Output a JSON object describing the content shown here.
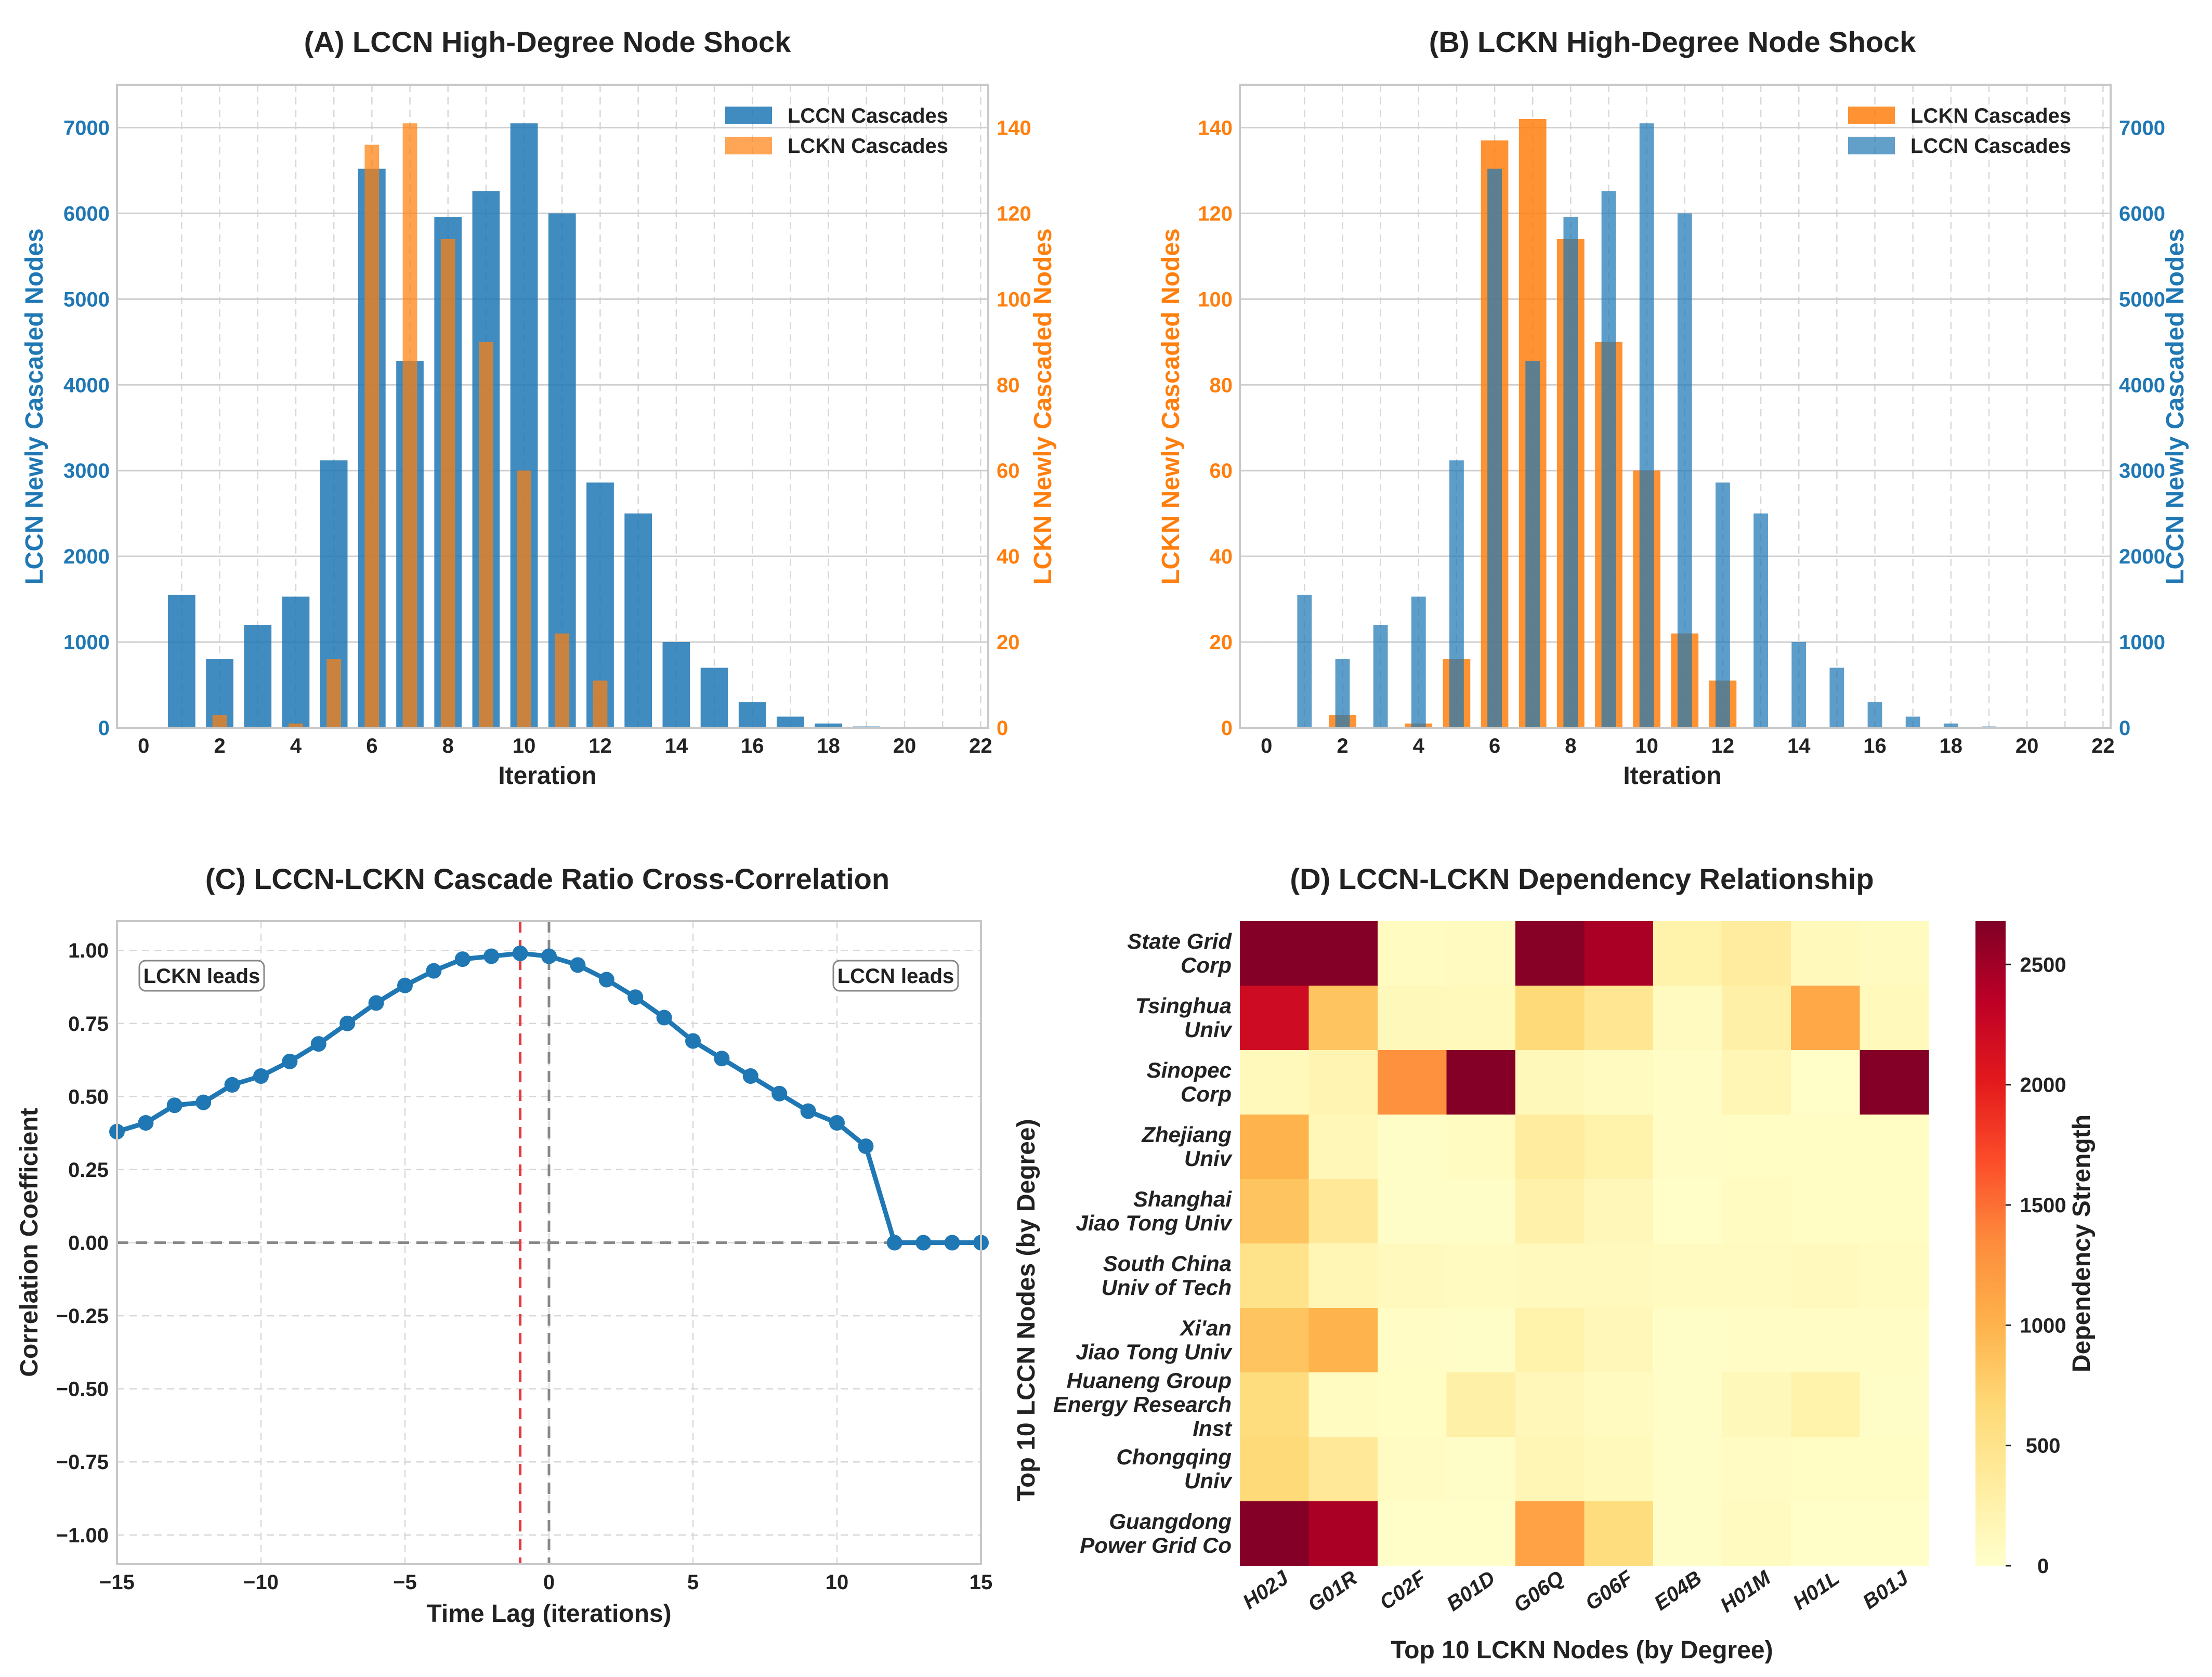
{
  "colors": {
    "blue": "#1f77b4",
    "orange": "#ff7f0e",
    "grid": "#d8d8d8",
    "corr_line": "#1f77b4",
    "peak_line": "#e8383d",
    "zero_line": "#888888"
  },
  "chart_data": [
    {
      "type": "bar",
      "title": "(A) LCCN High-Degree Node Shock",
      "xlabel": "Iteration",
      "ylabel_left": "LCCN Newly Cascaded Nodes",
      "ylabel_right": "LCKN Newly Cascaded Nodes",
      "xlim": [
        -0.7,
        22.2
      ],
      "ylim_left": [
        0,
        7500
      ],
      "ylim_right": [
        0,
        150
      ],
      "x_ticks": [
        0,
        2,
        4,
        6,
        8,
        10,
        12,
        14,
        16,
        18,
        20,
        22
      ],
      "y_ticks_left": [
        0,
        1000,
        2000,
        3000,
        4000,
        5000,
        6000,
        7000
      ],
      "y_ticks_right": [
        0,
        20,
        40,
        60,
        80,
        100,
        120,
        140
      ],
      "legend_position": "top-right",
      "series": [
        {
          "name": "LCCN Cascades",
          "axis": "left",
          "color": "#1f77b4",
          "width": 0.72,
          "offset": 0,
          "x": [
            1,
            2,
            3,
            4,
            5,
            6,
            7,
            8,
            9,
            10,
            11,
            12,
            13,
            14,
            15,
            16,
            17,
            18,
            19
          ],
          "values": [
            1550,
            800,
            1200,
            1530,
            3120,
            6520,
            4280,
            5960,
            6260,
            7050,
            6000,
            2860,
            2500,
            1000,
            700,
            300,
            130,
            50,
            15
          ]
        },
        {
          "name": "LCKN Cascades",
          "axis": "right",
          "color": "#ff7f0e",
          "width": 0.38,
          "offset": 0,
          "x": [
            2,
            4,
            5,
            6,
            7,
            8,
            9,
            10,
            11,
            12
          ],
          "values": [
            3,
            1,
            16,
            136,
            141,
            114,
            90,
            60,
            22,
            11
          ]
        }
      ]
    },
    {
      "type": "bar",
      "title": "(B) LCKN High-Degree Node Shock",
      "xlabel": "Iteration",
      "ylabel_left": "LCKN Newly Cascaded Nodes",
      "ylabel_right": "LCCN Newly Cascaded Nodes",
      "xlim": [
        -0.7,
        22.2
      ],
      "ylim_left": [
        0,
        150
      ],
      "ylim_right": [
        0,
        7500
      ],
      "x_ticks": [
        0,
        2,
        4,
        6,
        8,
        10,
        12,
        14,
        16,
        18,
        20,
        22
      ],
      "y_ticks_left": [
        0,
        20,
        40,
        60,
        80,
        100,
        120,
        140
      ],
      "y_ticks_right": [
        0,
        1000,
        2000,
        3000,
        4000,
        5000,
        6000,
        7000
      ],
      "legend_position": "top-right",
      "series": [
        {
          "name": "LCKN Cascades",
          "axis": "left",
          "color": "#ff7f0e",
          "width": 0.72,
          "offset": 0,
          "x": [
            2,
            4,
            5,
            6,
            7,
            8,
            9,
            10,
            11,
            12
          ],
          "values": [
            3,
            1,
            16,
            137,
            142,
            114,
            90,
            60,
            22,
            11
          ]
        },
        {
          "name": "LCCN Cascades",
          "axis": "right",
          "color": "#1f77b4",
          "width": 0.38,
          "offset": 0,
          "x": [
            1,
            2,
            3,
            4,
            5,
            6,
            7,
            8,
            9,
            10,
            11,
            12,
            13,
            14,
            15,
            16,
            17,
            18,
            19
          ],
          "values": [
            1550,
            800,
            1200,
            1530,
            3120,
            6520,
            4280,
            5960,
            6260,
            7050,
            6000,
            2860,
            2500,
            1000,
            700,
            300,
            130,
            50,
            15
          ]
        }
      ]
    },
    {
      "type": "line",
      "title": "(C) LCCN-LCKN Cascade Ratio Cross-Correlation",
      "xlabel": "Time Lag (iterations)",
      "ylabel": "Correlation Coefficient",
      "xlim": [
        -15,
        15
      ],
      "ylim": [
        -1.1,
        1.1
      ],
      "x_ticks": [
        -15,
        -10,
        -5,
        0,
        5,
        10,
        15
      ],
      "x_tick_labels": [
        "−15",
        "−10",
        "−5",
        "0",
        "5",
        "10",
        "15"
      ],
      "y_ticks": [
        1.0,
        0.75,
        0.5,
        0.25,
        0.0,
        -0.25,
        -0.5,
        -0.75,
        -1.0
      ],
      "y_tick_labels": [
        "1.00",
        "0.75",
        "0.50",
        "0.25",
        "0.00",
        "−0.25",
        "−0.50",
        "−0.75",
        "−1.00"
      ],
      "annotations": [
        "LCKN leads",
        "LCCN leads"
      ],
      "peak_lag": -1,
      "x": [
        -15,
        -14,
        -13,
        -12,
        -11,
        -10,
        -9,
        -8,
        -7,
        -6,
        -5,
        -4,
        -3,
        -2,
        -1,
        0,
        1,
        2,
        3,
        4,
        5,
        6,
        7,
        8,
        9,
        10,
        11,
        12,
        13,
        14,
        15
      ],
      "values": [
        0.38,
        0.41,
        0.47,
        0.48,
        0.54,
        0.57,
        0.62,
        0.68,
        0.75,
        0.82,
        0.88,
        0.93,
        0.97,
        0.98,
        0.99,
        0.98,
        0.95,
        0.9,
        0.84,
        0.77,
        0.69,
        0.63,
        0.57,
        0.51,
        0.45,
        0.41,
        0.33,
        0.0,
        0.0,
        0.0,
        0.0
      ]
    },
    {
      "type": "heatmap",
      "title": "(D) LCCN-LCKN Dependency Relationship",
      "xlabel": "Top 10 LCKN Nodes (by Degree)",
      "ylabel": "Top 10 LCCN Nodes (by Degree)",
      "colorbar_label": "Dependency Strength",
      "colorbar_ticks": [
        0,
        500,
        1000,
        1500,
        2000,
        2500
      ],
      "vmin": 0,
      "vmax": 2680,
      "columns": [
        "H02J",
        "G01R",
        "C02F",
        "B01D",
        "G06Q",
        "G06F",
        "E04B",
        "H01M",
        "H01L",
        "B01J"
      ],
      "rows": [
        [
          "State Grid",
          "Corp"
        ],
        [
          "Tsinghua",
          "Univ"
        ],
        [
          "Sinopec",
          "Corp"
        ],
        [
          "Zhejiang",
          "Univ"
        ],
        [
          "Shanghai",
          "Jiao Tong Univ"
        ],
        [
          "South China",
          "Univ of Tech"
        ],
        [
          "Xi'an",
          "Jiao Tong Univ"
        ],
        [
          "Huaneng Group",
          "Energy Research",
          "Inst"
        ],
        [
          "Chongqing",
          "Univ"
        ],
        [
          "Guangdong",
          "Power Grid Co"
        ]
      ],
      "values": [
        [
          2650,
          2650,
          80,
          90,
          2640,
          2450,
          250,
          350,
          120,
          100
        ],
        [
          2200,
          850,
          130,
          120,
          650,
          450,
          100,
          280,
          1100,
          120
        ],
        [
          120,
          200,
          1300,
          2650,
          130,
          100,
          50,
          180,
          30,
          2650
        ],
        [
          1000,
          150,
          40,
          80,
          350,
          250,
          50,
          60,
          60,
          60
        ],
        [
          850,
          400,
          40,
          40,
          260,
          140,
          20,
          80,
          60,
          60
        ],
        [
          500,
          170,
          110,
          90,
          110,
          110,
          90,
          90,
          110,
          80
        ],
        [
          850,
          1000,
          50,
          40,
          250,
          140,
          40,
          50,
          50,
          50
        ],
        [
          600,
          80,
          60,
          280,
          140,
          100,
          40,
          130,
          250,
          40
        ],
        [
          650,
          400,
          70,
          40,
          170,
          120,
          40,
          70,
          60,
          60
        ],
        [
          2650,
          2450,
          20,
          20,
          1150,
          600,
          40,
          90,
          20,
          20
        ]
      ]
    }
  ]
}
